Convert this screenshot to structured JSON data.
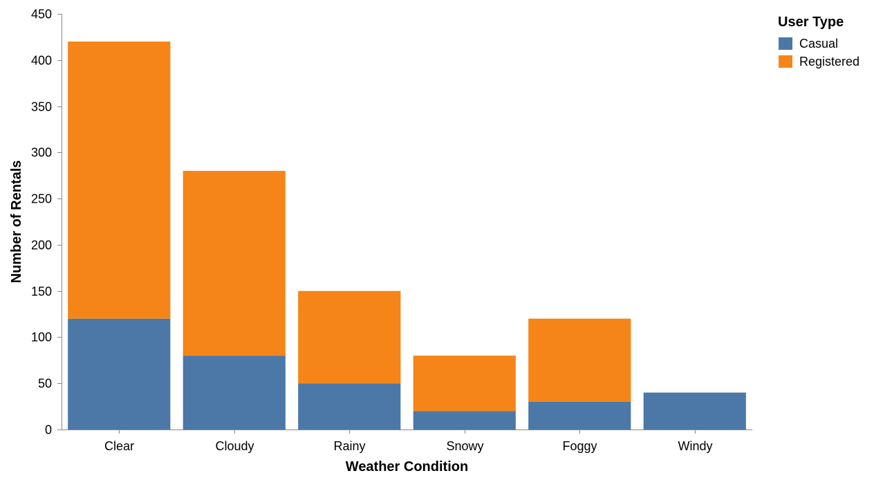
{
  "chart_data": {
    "type": "bar",
    "stacked": true,
    "categories": [
      "Clear",
      "Cloudy",
      "Rainy",
      "Snowy",
      "Foggy",
      "Windy"
    ],
    "series": [
      {
        "name": "Casual",
        "values": [
          120,
          80,
          50,
          20,
          30,
          40
        ],
        "color": "#4c78a8"
      },
      {
        "name": "Registered",
        "values": [
          300,
          200,
          100,
          60,
          90,
          0
        ],
        "color": "#f58518"
      }
    ],
    "xlabel": "Weather Condition",
    "ylabel": "Number of Rentals",
    "ylim": [
      0,
      450
    ],
    "yticks": [
      "0",
      "50",
      "100",
      "150",
      "200",
      "250",
      "300",
      "350",
      "400",
      "450"
    ],
    "grid": false,
    "legend": {
      "title": "User Type",
      "position": "top-right"
    }
  }
}
